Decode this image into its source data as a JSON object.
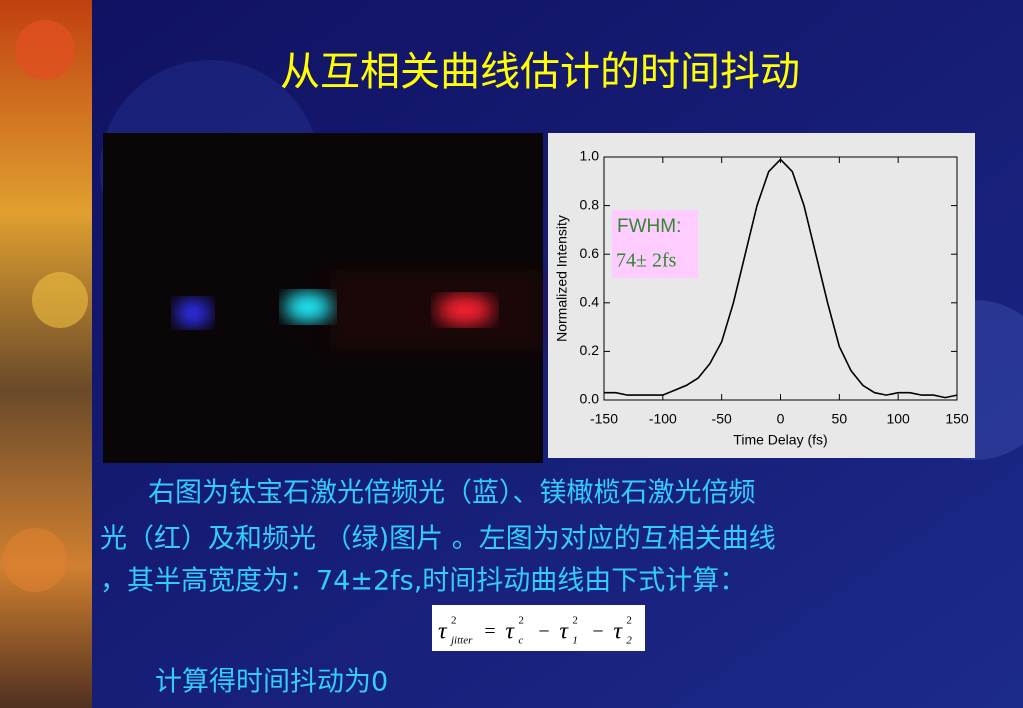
{
  "title": "从互相关曲线估计的时间抖动",
  "caption": [
    "右图为钛宝石激光倍频光（蓝）、镁橄榄石激光倍频",
    "光（红）及和频光 （绿)图片 。左图为对应的互相关曲线",
    "，其半高宽度为：74±2fs,时间抖动曲线由下式计算："
  ],
  "formula": [
    {
      "base": "τ",
      "sup": "2",
      "sub": "jitter"
    },
    {
      "op": "="
    },
    {
      "base": "τ",
      "sup": "2",
      "sub": "c"
    },
    {
      "op": "−"
    },
    {
      "base": "τ",
      "sup": "2",
      "sub": "1"
    },
    {
      "op": "−"
    },
    {
      "base": "τ",
      "sup": "2",
      "sub": "2"
    }
  ],
  "result": "计算得时间抖动为0",
  "chart_data": {
    "type": "line",
    "xlabel": "Time Delay (fs)",
    "ylabel": "Normalized Intensity",
    "annotations": [
      "FWHM:",
      "74± 2fs"
    ],
    "x": [
      -150,
      -140,
      -130,
      -120,
      -110,
      -100,
      -90,
      -80,
      -70,
      -60,
      -50,
      -40,
      -30,
      -20,
      -10,
      0,
      10,
      20,
      30,
      40,
      50,
      60,
      70,
      80,
      90,
      100,
      110,
      120,
      130,
      140,
      150
    ],
    "values": [
      0.03,
      0.03,
      0.02,
      0.02,
      0.02,
      0.02,
      0.04,
      0.06,
      0.09,
      0.15,
      0.24,
      0.4,
      0.6,
      0.8,
      0.94,
      0.99,
      0.94,
      0.8,
      0.6,
      0.4,
      0.22,
      0.12,
      0.06,
      0.03,
      0.02,
      0.03,
      0.03,
      0.02,
      0.02,
      0.01,
      0.02
    ],
    "color": "#000000",
    "xlim": [
      -150,
      150
    ],
    "xticks": [
      -150,
      -100,
      -50,
      0,
      50,
      100,
      150
    ],
    "ylim": [
      0,
      1
    ],
    "yticks": [
      {
        "value": 0,
        "label": "0.0"
      },
      0.2,
      0.4,
      0.6,
      0.8,
      {
        "value": 1,
        "label": "1.0"
      }
    ]
  }
}
